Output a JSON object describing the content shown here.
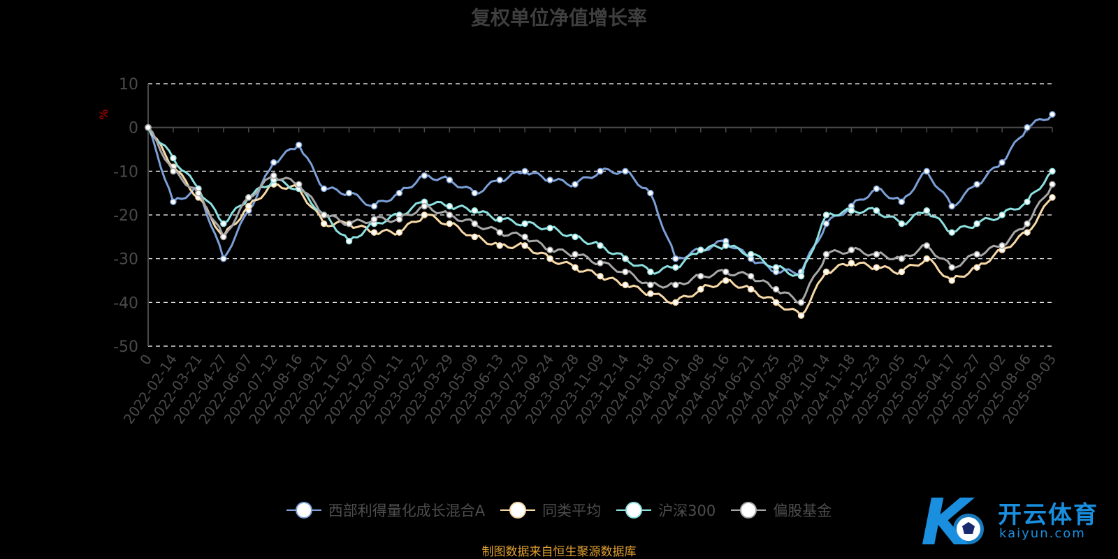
{
  "chart_data": {
    "type": "line",
    "title": "复权单位净值增长率",
    "ylabel": "%",
    "ylim": [
      -50,
      10
    ],
    "yticks": [
      10,
      0,
      -10,
      -20,
      -30,
      -40,
      -50
    ],
    "grid": true,
    "legend_position": "bottom",
    "x": [
      "0",
      "2022-02-14",
      "2022-03-21",
      "2022-04-27",
      "2022-06-07",
      "2022-07-12",
      "2022-08-16",
      "2022-09-21",
      "2022-11-02",
      "2022-12-07",
      "2023-01-11",
      "2023-02-22",
      "2023-03-29",
      "2023-05-09",
      "2023-06-13",
      "2023-07-20",
      "2023-08-24",
      "2023-09-28",
      "2023-11-09",
      "2023-12-14",
      "2024-01-18",
      "2024-03-01",
      "2024-04-08",
      "2024-05-16",
      "2024-06-21",
      "2024-07-25",
      "2024-08-29",
      "2024-10-14",
      "2024-11-18",
      "2024-12-23",
      "2025-02-05",
      "2025-03-12",
      "2025-04-17",
      "2025-05-27",
      "2025-07-02",
      "2025-08-06",
      "2025-09-03"
    ],
    "series": [
      {
        "name": "西部利得量化成长混合A",
        "color": "#7b9fd6",
        "values": [
          0,
          -17,
          -14,
          -30,
          -19,
          -8,
          -4,
          -14,
          -15,
          -18,
          -15,
          -11,
          -12,
          -15,
          -12,
          -10,
          -12,
          -13,
          -10,
          -10,
          -15,
          -30,
          -28,
          -26,
          -30,
          -33,
          -33,
          -22,
          -18,
          -14,
          -17,
          -10,
          -18,
          -13,
          -8,
          0,
          3
        ]
      },
      {
        "name": "同类平均",
        "color": "#f7d9a8",
        "values": [
          0,
          -9,
          -16,
          -25,
          -18,
          -13,
          -14,
          -22,
          -22,
          -24,
          -24,
          -20,
          -22,
          -25,
          -27,
          -27,
          -30,
          -32,
          -34,
          -36,
          -38,
          -40,
          -37,
          -35,
          -37,
          -40,
          -43,
          -33,
          -31,
          -32,
          -33,
          -30,
          -35,
          -32,
          -28,
          -24,
          -16
        ]
      },
      {
        "name": "沪深300",
        "color": "#8de0e0",
        "values": [
          0,
          -7,
          -14,
          -22,
          -16,
          -12,
          -14,
          -20,
          -26,
          -22,
          -20,
          -17,
          -18,
          -19,
          -21,
          -22,
          -23,
          -25,
          -27,
          -30,
          -33,
          -32,
          -28,
          -27,
          -29,
          -32,
          -34,
          -20,
          -19,
          -19,
          -22,
          -19,
          -24,
          -22,
          -20,
          -17,
          -10
        ]
      },
      {
        "name": "偏股基金",
        "color": "#a7a7a7",
        "values": [
          0,
          -10,
          -15,
          -25,
          -16,
          -11,
          -13,
          -20,
          -22,
          -21,
          -21,
          -18,
          -20,
          -22,
          -24,
          -25,
          -28,
          -29,
          -31,
          -33,
          -36,
          -36,
          -34,
          -33,
          -34,
          -37,
          -40,
          -29,
          -28,
          -29,
          -30,
          -27,
          -32,
          -29,
          -27,
          -22,
          -13
        ]
      }
    ]
  },
  "source_note": "制图数据来自恒生聚源数据库",
  "watermark": {
    "name": "开云体育",
    "url": "kaiyun.com",
    "logo_letter": "K"
  },
  "colors": {
    "background": "#000000",
    "grid": "#ffffff",
    "axis_text": "#4a4a4a",
    "ylabel": "#cc0000",
    "source_note": "#e0a030",
    "watermark": "#1a8fe0"
  }
}
